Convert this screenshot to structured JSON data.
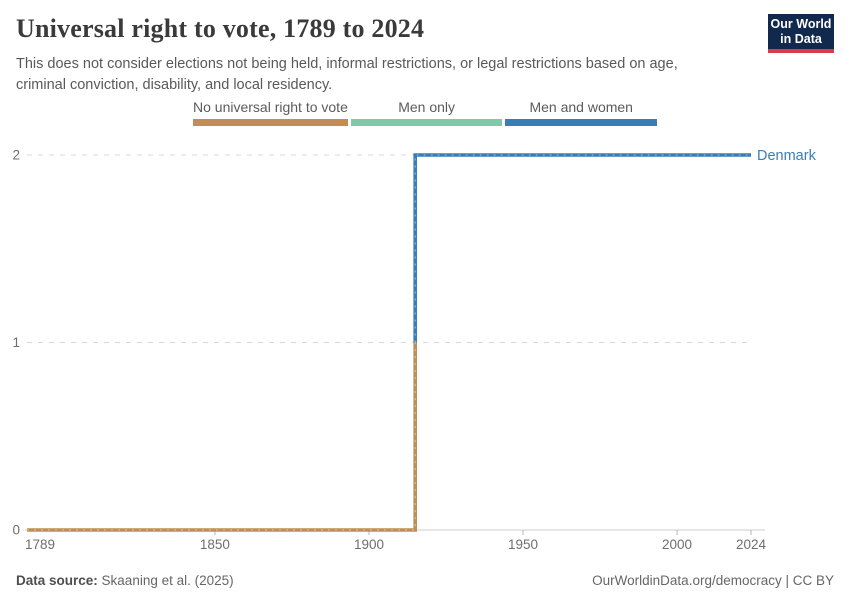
{
  "header": {
    "title": "Universal right to vote, 1789 to 2024",
    "subtitle": "This does not consider elections not being held, informal restrictions, or legal restrictions based on age, criminal conviction, disability, and local residency.",
    "logo": {
      "line1": "Our World",
      "line2": "in Data"
    }
  },
  "legend": {
    "items": [
      {
        "label": "No universal right to vote",
        "color": "#BE8E54"
      },
      {
        "label": "Men only",
        "color": "#7DC9A9"
      },
      {
        "label": "Men and women",
        "color": "#377EB8"
      }
    ]
  },
  "chart_data": {
    "type": "line",
    "subtype": "step",
    "title": "Universal right to vote, 1789 to 2024",
    "xlabel": "",
    "ylabel": "",
    "xlim": [
      1789,
      2024
    ],
    "ylim": [
      0,
      2
    ],
    "x_ticks": [
      1789,
      1850,
      1900,
      1950,
      2000,
      2024
    ],
    "y_ticks": [
      0,
      1,
      2
    ],
    "grid": "horizontal-dashed",
    "legend_position": "top",
    "categories_legend": [
      "No universal right to vote",
      "Men only",
      "Men and women"
    ],
    "series": [
      {
        "name": "Denmark",
        "color": "#377EB8",
        "points": [
          [
            1789,
            0
          ],
          [
            1914,
            0
          ],
          [
            1915,
            2
          ],
          [
            2024,
            2
          ]
        ]
      }
    ],
    "value_colors": {
      "0": "#BE8E54",
      "1": "#7DC9A9",
      "2": "#377EB8"
    },
    "draw_segments": [
      {
        "color": "#BE8E54",
        "points": [
          [
            1789,
            0
          ],
          [
            1915,
            0
          ],
          [
            1915,
            1
          ]
        ]
      },
      {
        "color": "#377EB8",
        "points": [
          [
            1915,
            1
          ],
          [
            1915,
            2
          ],
          [
            2024,
            2
          ]
        ]
      }
    ],
    "entity_label": "Denmark",
    "entity_label_color": "#377EB8",
    "axis_color": "#cdcdcd",
    "tick_color": "#b5b5b5",
    "gridline_color": "#d8d8d8",
    "tick_label_color": "#6e6e6e"
  },
  "footer": {
    "source_label": "Data source:",
    "source_text": "Skaaning et al. (2025)",
    "right_text": "OurWorldinData.org/democracy | CC BY"
  }
}
